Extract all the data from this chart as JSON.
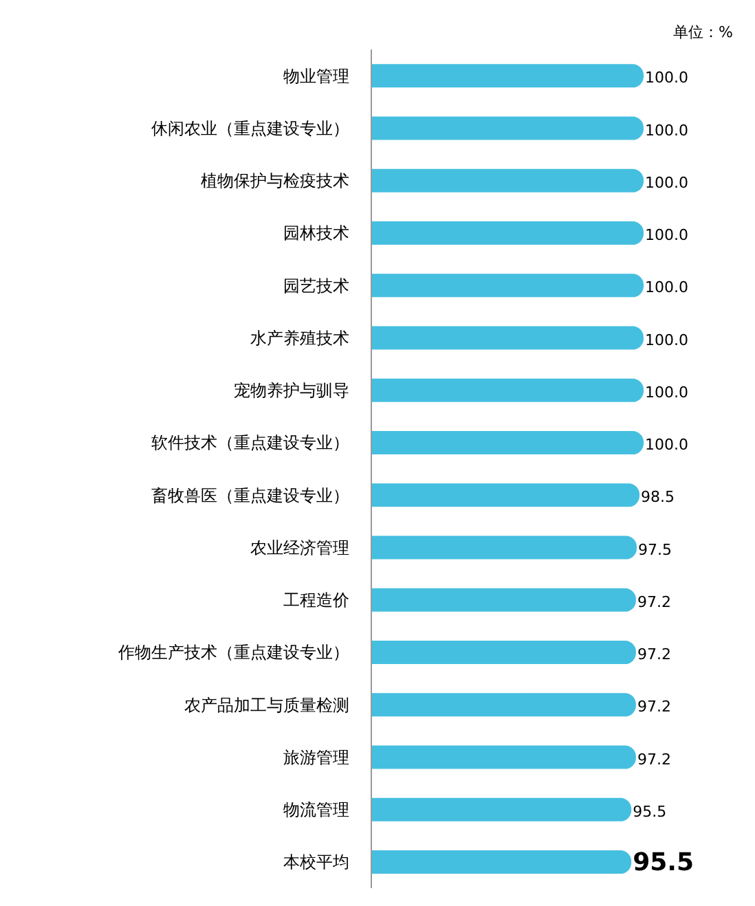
{
  "chart_data": {
    "type": "bar",
    "orientation": "horizontal",
    "annotations": [
      "单位：%"
    ],
    "categories": [
      "物业管理",
      "休闲农业（重点建设专业）",
      "植物保护与检疫技术",
      "园林技术",
      "园艺技术",
      "水产养殖技术",
      "宠物养护与驯导",
      "软件技术（重点建设专业）",
      "畜牧兽医（重点建设专业）",
      "农业经济管理",
      "工程造价",
      "作物生产技术（重点建设专业）",
      "农产品加工与质量检测",
      "旅游管理",
      "物流管理",
      "本校平均"
    ],
    "values": [
      100.0,
      100.0,
      100.0,
      100.0,
      100.0,
      100.0,
      100.0,
      100.0,
      98.5,
      97.5,
      97.2,
      97.2,
      97.2,
      97.2,
      95.5,
      95.5
    ],
    "value_labels": [
      "100.0",
      "100.0",
      "100.0",
      "100.0",
      "100.0",
      "100.0",
      "100.0",
      "100.0",
      "98.5",
      "97.5",
      "97.2",
      "97.2",
      "97.2",
      "97.2",
      "95.5",
      "95.5"
    ],
    "color": "#45bfe0",
    "grid": false
  }
}
